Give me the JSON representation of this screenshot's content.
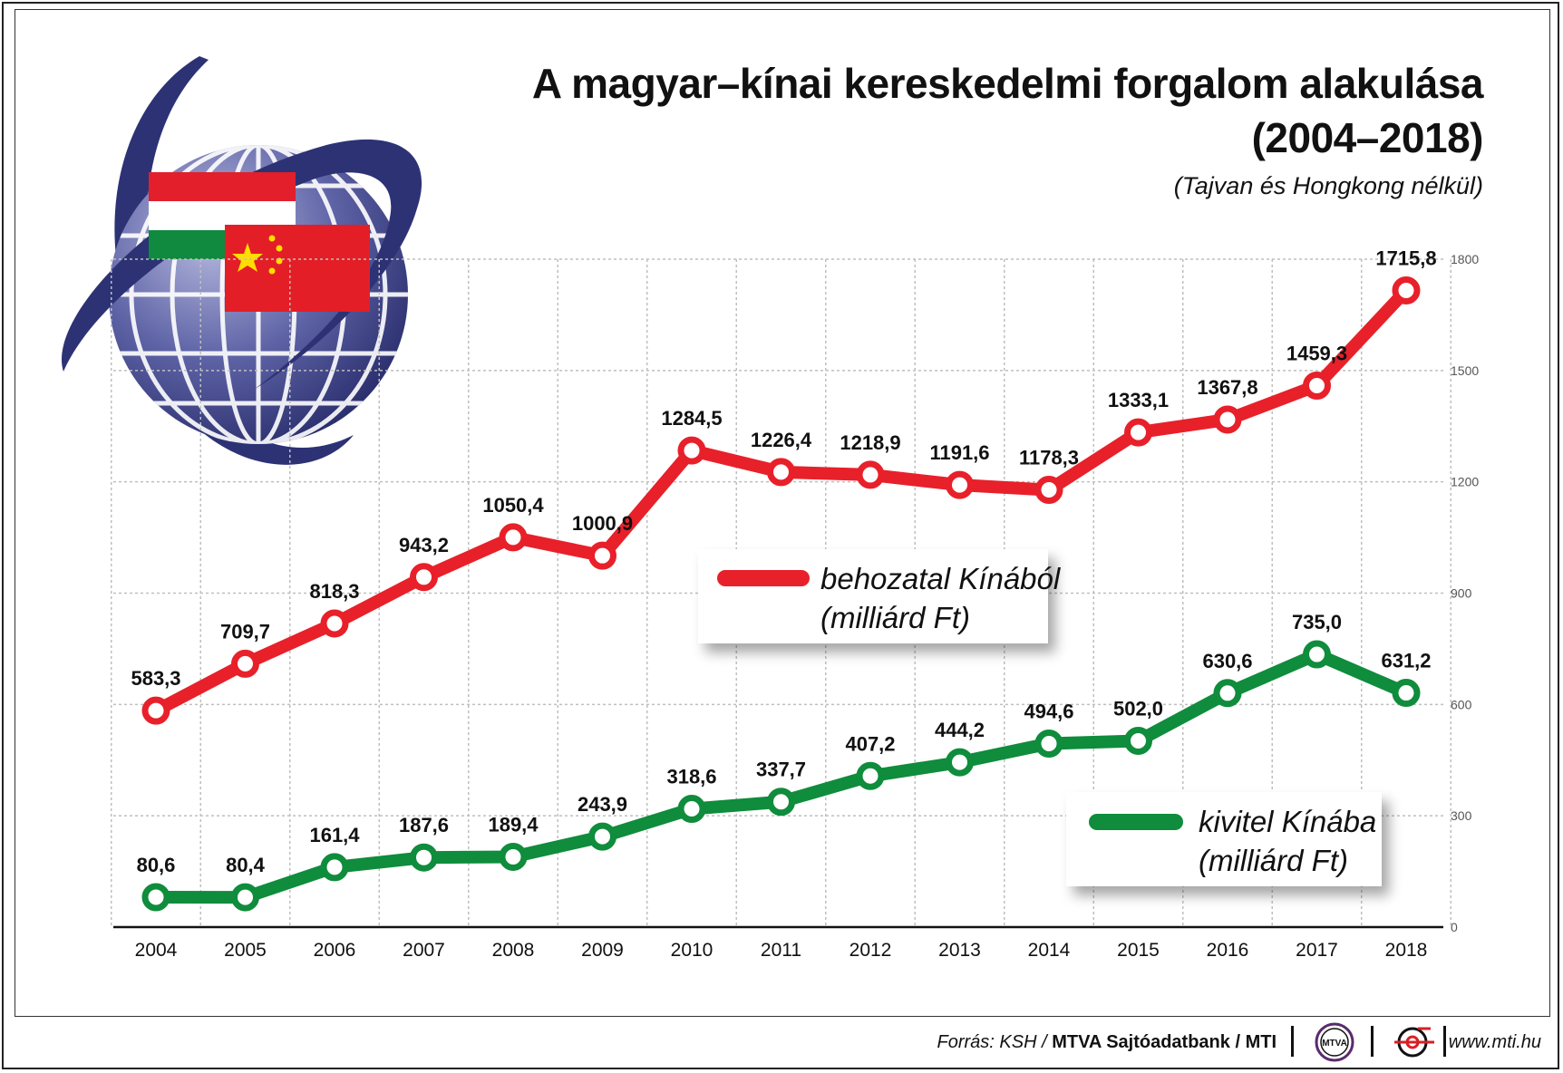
{
  "title_line1": "A magyar–kínai kereskedelmi forgalom alakulása",
  "title_line2": "(2004–2018)",
  "subtitle": "(Tajvan és Hongkong nélkül)",
  "legend": {
    "import_label_1": "behozatal Kínából",
    "import_label_2": "(milliárd Ft)",
    "export_label_1": "kivitel Kínába",
    "export_label_2": "(milliárd Ft)"
  },
  "footer": {
    "source_prefix": "Forrás: KSH / ",
    "source_bold": "MTVA Sajtóadatbank / MTI",
    "mtva_logo_text": "MTVA",
    "website": "www.mti.hu"
  },
  "colors": {
    "import": "#e8202a",
    "export": "#0f8c3c",
    "globe": "#3b3f86",
    "hu_red": "#e21f2b",
    "hu_green": "#0f8a3e",
    "cn_red": "#e41e26",
    "cn_star": "#ffdd00"
  },
  "icons": [
    "globe-icon",
    "hungarian-flag-icon",
    "chinese-flag-icon",
    "mtva-logo-icon",
    "mti-logo-icon"
  ],
  "chart_data": {
    "type": "line",
    "x": [
      "2004",
      "2005",
      "2006",
      "2007",
      "2008",
      "2009",
      "2010",
      "2011",
      "2012",
      "2013",
      "2014",
      "2015",
      "2016",
      "2017",
      "2018"
    ],
    "series": [
      {
        "name": "behozatal Kínából (milliárd Ft)",
        "values": [
          583.3,
          709.7,
          818.3,
          943.2,
          1050.4,
          1000.9,
          1284.5,
          1226.4,
          1218.9,
          1191.6,
          1178.3,
          1333.1,
          1367.8,
          1459.3,
          1715.8
        ],
        "labels": [
          "583,3",
          "709,7",
          "818,3",
          "943,2",
          "1050,4",
          "1000,9",
          "1284,5",
          "1226,4",
          "1218,9",
          "1191,6",
          "1178,3",
          "1333,1",
          "1367,8",
          "1459,3",
          "1715,8"
        ]
      },
      {
        "name": "kivitel Kínába (milliárd Ft)",
        "values": [
          80.6,
          80.4,
          161.4,
          187.6,
          189.4,
          243.9,
          318.6,
          337.7,
          407.2,
          444.2,
          494.6,
          502.0,
          630.6,
          735.0,
          631.2
        ],
        "labels": [
          "80,6",
          "80,4",
          "161,4",
          "187,6",
          "189,4",
          "243,9",
          "318,6",
          "337,7",
          "407,2",
          "444,2",
          "494,6",
          "502,0",
          "630,6",
          "735,0",
          "631,2"
        ]
      }
    ],
    "yticks": [
      "0",
      "300",
      "600",
      "900",
      "1200",
      "1500",
      "1800"
    ],
    "ylim": [
      0,
      1800
    ],
    "y_axis_side": "right",
    "grid": true,
    "legend_placement": "inside, near lines"
  }
}
